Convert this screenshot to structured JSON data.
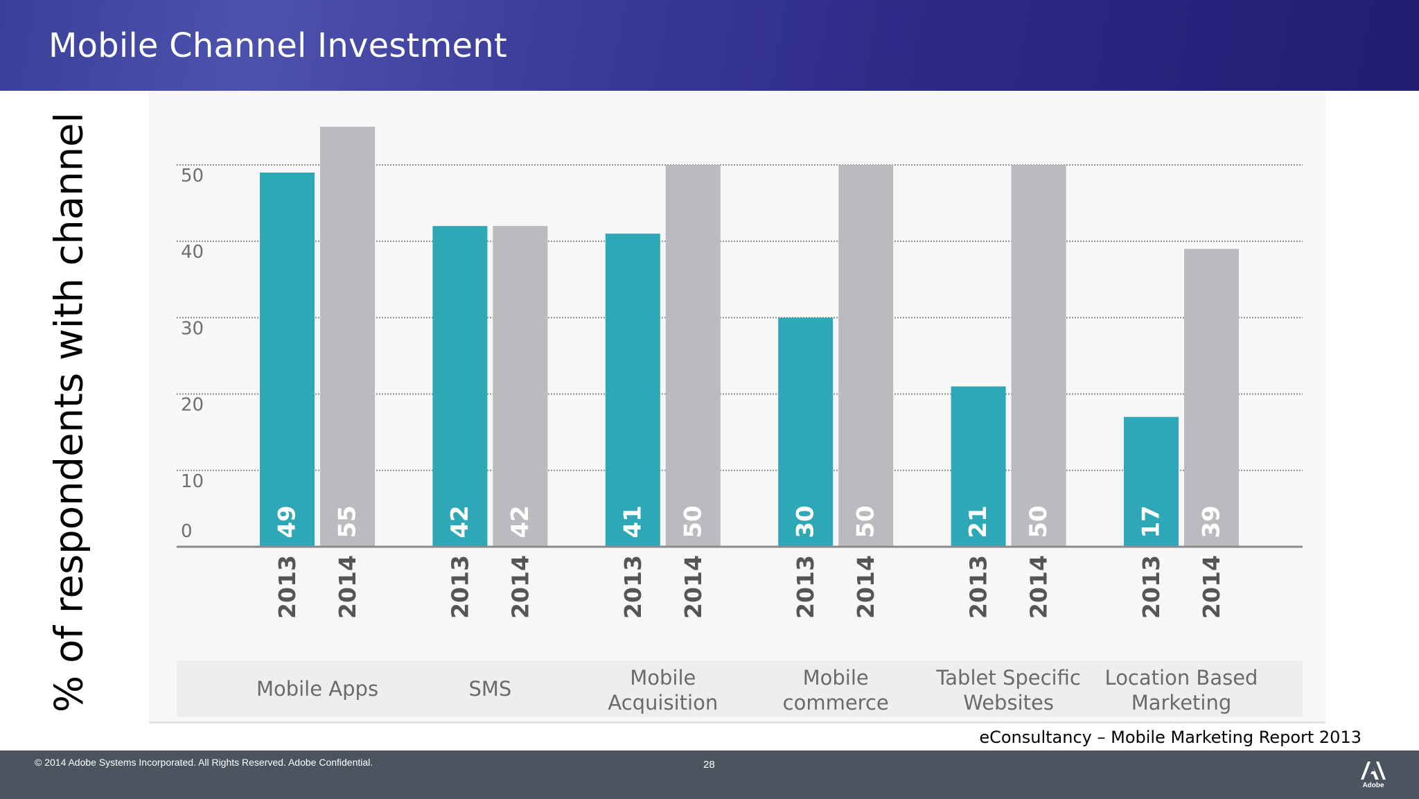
{
  "slide": {
    "title": "Mobile Channel Investment",
    "ylabel": "% of respondents with channel",
    "source": "eConsultancy – Mobile Marketing Report 2013",
    "copyright": "© 2014 Adobe Systems Incorporated.  All Rights Reserved.  Adobe Confidential.",
    "page_number": "28",
    "logo_text": "Adobe"
  },
  "colors": {
    "series_2013": "#2ea7b6",
    "series_2014": "#bbbabe",
    "header_start": "#3a3f9a",
    "header_end": "#211d73",
    "footer": "#4b5560"
  },
  "chart_data": {
    "type": "bar",
    "categories": [
      "Mobile Apps",
      "SMS",
      "Mobile Acquisition",
      "Mobile commerce",
      "Tablet Specific Websites",
      "Location Based Marketing"
    ],
    "category_lines": [
      [
        "Mobile Apps"
      ],
      [
        "SMS"
      ],
      [
        "Mobile",
        "Acquisition"
      ],
      [
        "Mobile",
        "commerce"
      ],
      [
        "Tablet Specific",
        "Websites"
      ],
      [
        "Location Based",
        "Marketing"
      ]
    ],
    "series": [
      {
        "name": "2013",
        "values": [
          49,
          42,
          41,
          30,
          21,
          17
        ]
      },
      {
        "name": "2014",
        "values": [
          55,
          42,
          50,
          50,
          50,
          39
        ]
      }
    ],
    "yticks": [
      0,
      10,
      20,
      30,
      40,
      50
    ],
    "ylim": [
      0,
      50
    ],
    "ylabel": "% of respondents with channel",
    "grid": true,
    "data_labels": true
  }
}
